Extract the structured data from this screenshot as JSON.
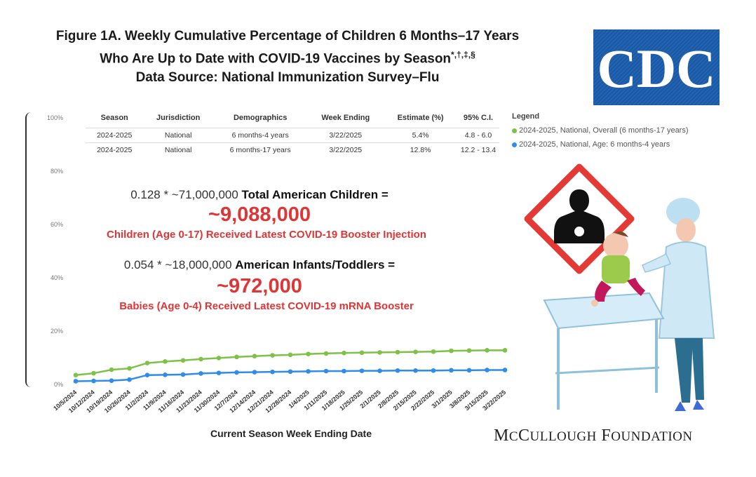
{
  "title": {
    "line1": "Figure 1A. Weekly Cumulative Percentage of Children 6 Months–17 Years",
    "line2": "Who Are Up to Date with COVID-19 Vaccines by Season",
    "line2_marks": "*,†,‡,§",
    "line3": "Data Source: National Immunization Survey–Flu"
  },
  "logo": {
    "text": "CDC",
    "color": "#1b5aa6"
  },
  "table": {
    "headers": [
      "Season",
      "Jurisdiction",
      "Demographics",
      "Week Ending",
      "Estimate (%)",
      "95% C.I."
    ],
    "rows": [
      [
        "2024-2025",
        "National",
        "6 months-4 years",
        "3/22/2025",
        "5.4%",
        "4.8 - 6.0"
      ],
      [
        "2024-2025",
        "National",
        "6 months-17 years",
        "3/22/2025",
        "12.8%",
        "12.2 - 13.4"
      ]
    ]
  },
  "legend": {
    "title": "Legend",
    "items": [
      {
        "label": "2024-2025, National, Overall (6 months-17 years)",
        "color": "#7dc146"
      },
      {
        "label": "2024-2025, National, Age: 6 months-4 years",
        "color": "#2f8ce8"
      }
    ]
  },
  "annotations": {
    "calc1_prefix": "0.128 * ~71,000,000",
    "calc1_bold": "Total American Children =",
    "result1": "~9,088,000",
    "caption1": "Children (Age 0-17) Received Latest COVID-19 Booster Injection",
    "calc2_prefix": "0.054 * ~18,000,000",
    "calc2_bold": "American Infants/Toddlers =",
    "result2": "~972,000",
    "caption2": "Babies (Age 0-4) Received Latest COVID-19 mRNA Booster"
  },
  "foundation": {
    "first": "M",
    "first_small": "C",
    "rest1": "C",
    "rest1_small": "ULLOUGH",
    "rest2": "F",
    "rest2_small": "OUNDATION"
  },
  "chart_data": {
    "type": "line",
    "xlabel": "Current Season Week Ending Date",
    "ylabel": "",
    "ylim": [
      0,
      100
    ],
    "yticks": [
      "0%",
      "20%",
      "40%",
      "60%",
      "80%",
      "100%"
    ],
    "ytick_values": [
      0,
      20,
      40,
      60,
      80,
      100
    ],
    "x": [
      "10/5/2024",
      "10/12/2024",
      "10/19/2024",
      "10/26/2024",
      "11/2/2024",
      "11/9/2024",
      "11/16/2024",
      "11/23/2024",
      "11/30/2024",
      "12/7/2024",
      "12/14/2024",
      "12/21/2024",
      "12/28/2024",
      "1/4/2025",
      "1/11/2025",
      "1/18/2025",
      "1/25/2025",
      "2/1/2025",
      "2/8/2025",
      "2/15/2025",
      "2/22/2025",
      "3/1/2025",
      "3/8/2025",
      "3/15/2025",
      "3/22/2025"
    ],
    "series": [
      {
        "name": "2024-2025, National, Overall (6 months-17 years)",
        "color": "#7dc146",
        "values": [
          3.5,
          4.2,
          5.5,
          6.0,
          8.0,
          8.6,
          9.0,
          9.5,
          9.9,
          10.3,
          10.6,
          10.9,
          11.1,
          11.4,
          11.6,
          11.8,
          11.9,
          12.0,
          12.1,
          12.2,
          12.3,
          12.6,
          12.7,
          12.8,
          12.8
        ]
      },
      {
        "name": "2024-2025, National, Age: 6 months-4 years",
        "color": "#2f8ce8",
        "values": [
          1.2,
          1.3,
          1.4,
          1.8,
          3.5,
          3.6,
          3.7,
          4.1,
          4.3,
          4.5,
          4.6,
          4.7,
          4.8,
          4.9,
          5.0,
          5.0,
          5.1,
          5.1,
          5.2,
          5.2,
          5.2,
          5.3,
          5.3,
          5.4,
          5.4
        ]
      }
    ]
  }
}
